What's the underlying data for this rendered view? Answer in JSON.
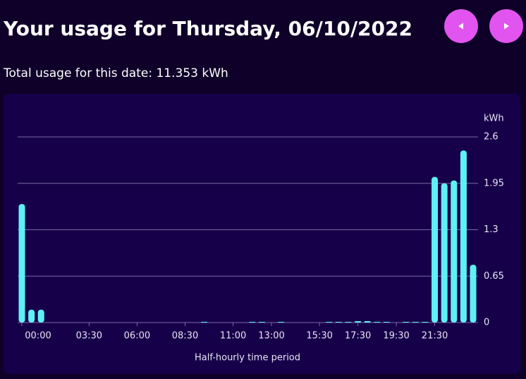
{
  "header": {
    "title": "Your usage for Thursday, 06/10/2022",
    "subtitle": "Total usage for this date: 11.353 kWh"
  },
  "chart_data": {
    "type": "bar",
    "y_unit": "kWh",
    "x_label": "Half-hourly time period",
    "color": "#5ef1f4",
    "grid": true,
    "categories": [
      "00:00",
      null,
      null,
      null,
      null,
      null,
      null,
      "03:30",
      null,
      null,
      null,
      null,
      "06:00",
      null,
      null,
      null,
      null,
      "08:30",
      null,
      null,
      null,
      null,
      "11:00",
      null,
      null,
      null,
      "13:00",
      null,
      null,
      null,
      null,
      "15:30",
      null,
      null,
      null,
      "17:30",
      null,
      null,
      null,
      "19:30",
      null,
      null,
      null,
      "21:30",
      null,
      null,
      null,
      null
    ],
    "values": [
      1.66,
      0.18,
      0.18,
      0,
      0,
      0,
      0,
      0,
      0,
      0,
      0,
      0,
      0,
      0,
      0,
      0,
      0,
      0,
      0,
      0.01,
      0,
      0,
      0,
      0,
      0.01,
      0.01,
      0,
      0.01,
      0,
      0,
      0,
      0,
      0.01,
      0.01,
      0.01,
      0.02,
      0.02,
      0.01,
      0.01,
      0,
      0.01,
      0.01,
      0.01,
      2.04,
      1.95,
      1.99,
      2.41,
      0.81
    ],
    "ylim": [
      0,
      2.6
    ],
    "yticks": [
      0,
      0.65,
      1.3,
      1.95,
      2.6
    ]
  }
}
